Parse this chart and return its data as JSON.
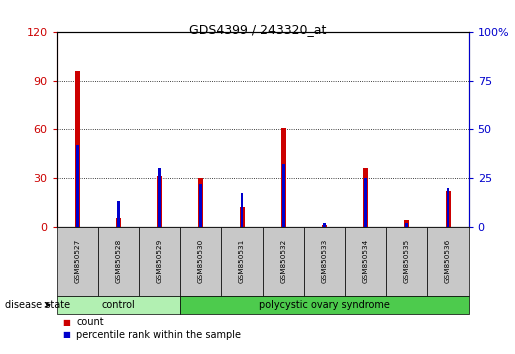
{
  "title": "GDS4399 / 243320_at",
  "samples": [
    "GSM850527",
    "GSM850528",
    "GSM850529",
    "GSM850530",
    "GSM850531",
    "GSM850532",
    "GSM850533",
    "GSM850534",
    "GSM850535",
    "GSM850536"
  ],
  "count_values": [
    96,
    5,
    31,
    30,
    12,
    61,
    1,
    36,
    4,
    22
  ],
  "percentile_values": [
    42,
    13,
    30,
    22,
    17,
    32,
    2,
    25,
    2,
    20
  ],
  "groups": [
    {
      "label": "control",
      "indices": [
        0,
        1,
        2
      ],
      "color": "#b2f0b2"
    },
    {
      "label": "polycystic ovary syndrome",
      "indices": [
        3,
        4,
        5,
        6,
        7,
        8,
        9
      ],
      "color": "#4dcb4d"
    }
  ],
  "ylim_left": [
    0,
    120
  ],
  "ylim_right": [
    0,
    100
  ],
  "yticks_left": [
    0,
    30,
    60,
    90,
    120
  ],
  "yticks_right": [
    0,
    25,
    50,
    75,
    100
  ],
  "ylabel_left_color": "#cc0000",
  "ylabel_right_color": "#0000cc",
  "bar_color_count": "#cc0000",
  "bar_color_pct": "#0000cc",
  "grid_color": "black",
  "legend_count_label": "count",
  "legend_pct_label": "percentile rank within the sample",
  "disease_state_label": "disease state",
  "background_color": "#ffffff",
  "tick_label_area_color": "#c8c8c8",
  "bar_width": 0.12
}
